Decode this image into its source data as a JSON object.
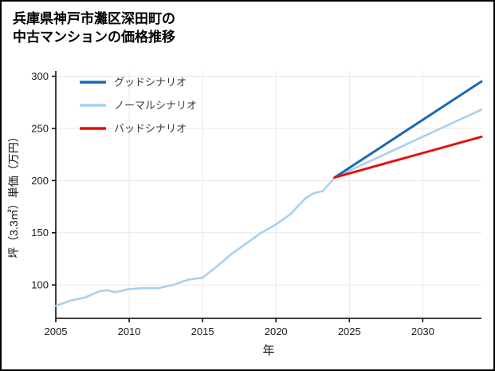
{
  "header": {
    "title_line1": "兵庫県神戸市灘区深田町の",
    "title_line2": "中古マンションの価格推移"
  },
  "chart_data": {
    "type": "line",
    "title": "兵庫県神戸市灘区深田町の中古マンションの価格推移",
    "xlabel": "年",
    "ylabel": "坪（3.3㎡）単価（万円）",
    "xlim": [
      2005,
      2034
    ],
    "ylim": [
      68,
      305
    ],
    "xticks": [
      2005,
      2010,
      2015,
      2020,
      2025,
      2030
    ],
    "yticks": [
      100,
      150,
      200,
      250,
      300
    ],
    "grid": true,
    "legend_position": "top-left",
    "colors": {
      "good": "#1b6ab3",
      "normal": "#a7d1f1",
      "bad": "#e3120b",
      "gridline": "#e7e7e7",
      "axis": "#000000",
      "tick_label": "#1a1a1a",
      "legend_label": "#3a3a3a"
    },
    "series": [
      {
        "name": "グッドシナリオ",
        "color": "#1b6ab3",
        "width": 3,
        "x": [
          2024,
          2034
        ],
        "y": [
          203,
          295
        ]
      },
      {
        "name": "ノーマルシナリオ",
        "color": "#a7d1f1",
        "width": 2.6,
        "x": [
          2005,
          2006,
          2007,
          2008,
          2008.5,
          2009,
          2010,
          2011,
          2012,
          2013,
          2014,
          2015,
          2016,
          2017,
          2018,
          2019,
          2020,
          2021,
          2022,
          2022.6,
          2023.2,
          2024,
          2034
        ],
        "y": [
          80,
          85,
          88,
          94,
          95,
          93,
          96,
          97,
          97,
          100,
          105,
          107,
          118,
          130,
          140,
          150,
          158,
          168,
          183,
          188,
          190,
          203,
          268
        ]
      },
      {
        "name": "バッドシナリオ",
        "color": "#e3120b",
        "width": 3,
        "x": [
          2024,
          2034
        ],
        "y": [
          203,
          242
        ]
      }
    ]
  }
}
